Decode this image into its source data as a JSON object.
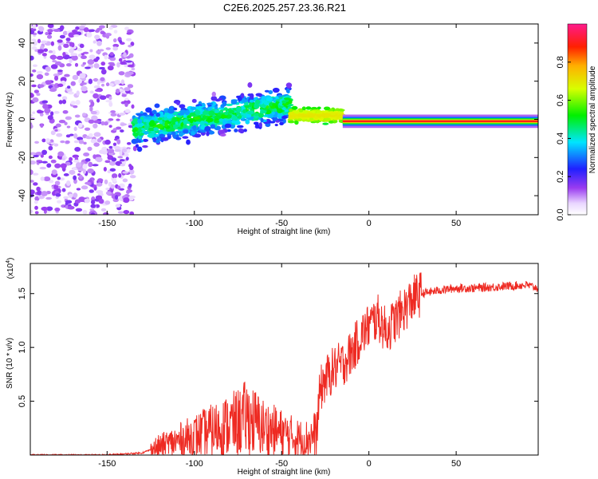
{
  "title": "C2E6.2025.257.23.36.R21",
  "chart_data": [
    {
      "type": "heatmap",
      "xlabel": "Height of straight line (km)",
      "ylabel": "Frequency (Hz)",
      "xlim": [
        -194,
        97
      ],
      "ylim": [
        -50,
        50
      ],
      "xticks": [
        -150,
        -100,
        -50,
        0,
        50
      ],
      "yticks": [
        -40,
        -20,
        0,
        20,
        40
      ],
      "colorbar": {
        "label": "Normalized spectral amplitude",
        "range": [
          0,
          1
        ],
        "ticks": [
          "0.0",
          "0.2",
          "0.4",
          "0.6",
          "0.8"
        ]
      },
      "features": [
        {
          "region": "diffuse scatter",
          "x_range": [
            -194,
            -135
          ],
          "freq_range": [
            -50,
            50
          ],
          "amplitude": 0.1
        },
        {
          "region": "broad band",
          "x_range": [
            -135,
            -45
          ],
          "freq_center_start": -5,
          "freq_center_end": 8,
          "freq_width": 12,
          "amplitude": 0.3
        },
        {
          "region": "transition",
          "x_range": [
            -45,
            -15
          ],
          "freq_center": 2,
          "freq_width": 6,
          "amplitude": 0.5
        },
        {
          "region": "narrow line",
          "x_range": [
            -15,
            97
          ],
          "freq_center": -1,
          "freq_width": 3,
          "amplitude": 0.9
        }
      ]
    },
    {
      "type": "line",
      "xlabel": "Height of straight line (km)",
      "ylabel": "SNR (10 * v/v)",
      "yscale_note": "(x10",
      "yscale_exp": "4",
      "xlim": [
        -194,
        97
      ],
      "ylim": [
        0,
        1.78
      ],
      "xticks": [
        -150,
        -100,
        -50,
        0,
        50
      ],
      "yticks": [
        0.5,
        1.0,
        1.5
      ],
      "ytick_labels": [
        "0.5",
        "1.0",
        "1.5"
      ],
      "series": [
        {
          "name": "SNR",
          "color": "#ee2a22",
          "x": [
            -194,
            -170,
            -150,
            -130,
            -125,
            -115,
            -105,
            -95,
            -85,
            -75,
            -70,
            -65,
            -60,
            -50,
            -40,
            -35,
            -30,
            -28,
            -25,
            -20,
            -15,
            -10,
            -5,
            0,
            5,
            10,
            15,
            20,
            25,
            30,
            40,
            50,
            60,
            70,
            80,
            90,
            97
          ],
          "y": [
            0.0,
            0.0,
            0.0,
            0.02,
            0.05,
            0.1,
            0.15,
            0.2,
            0.25,
            0.3,
            0.35,
            0.3,
            0.25,
            0.2,
            0.15,
            0.15,
            0.2,
            0.6,
            0.7,
            0.8,
            0.85,
            0.95,
            1.1,
            1.2,
            1.28,
            1.15,
            1.25,
            1.35,
            1.45,
            1.5,
            1.53,
            1.55,
            1.55,
            1.56,
            1.57,
            1.58,
            1.55
          ]
        }
      ]
    }
  ]
}
